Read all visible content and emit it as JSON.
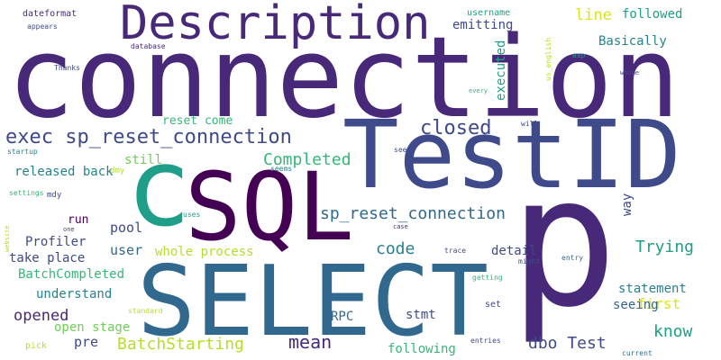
{
  "words": {
    "connection": "connection",
    "testid": "TestID",
    "select": "SELECT",
    "sql": "SQL",
    "c": "c",
    "p": "p",
    "description": "Description",
    "exec_reset": "exec sp_reset_connection",
    "sp_reset": "sp_reset_connection",
    "closed": "closed",
    "completed": "Completed",
    "batchstarting": "BatchStarting",
    "batchcompleted": "BatchCompleted",
    "mean": "mean",
    "dbo_test": "dbo Test",
    "code": "code",
    "trying": "Trying",
    "know": "know",
    "first": "first",
    "seeing": "seeing",
    "statement": "statement",
    "detail": "detail",
    "rpc": "RPC",
    "stmt": "stmt",
    "following": "following",
    "pre": "pre",
    "open_stage": "open stage",
    "opened": "opened",
    "understand": "understand",
    "take_place": "take place",
    "profiler": "Profiler",
    "run": "run",
    "pool": "pool",
    "user": "user",
    "whole_process": "whole process",
    "released_back": "released back",
    "still": "still",
    "reset_come": "reset come",
    "emitting": "emitting",
    "line": "line",
    "followed": "followed",
    "basically": "Basically",
    "executed": "executed",
    "way": "way",
    "username": "username",
    "dateformat": "dateformat",
    "appears": "appears",
    "thanks": "Thanks",
    "database": "database",
    "us_english": "us_english",
    "asp": "asp",
    "whome": "whome",
    "every": "every",
    "will": "will",
    "see": "see",
    "seems": "seems",
    "startup": "startup",
    "dmy": "dmy",
    "settings": "settings",
    "mdy": "mdy",
    "uses": "uses",
    "website": "website",
    "one": "one",
    "case": "case",
    "trace": "trace",
    "might": "might",
    "entry": "entry",
    "getting": "getting",
    "set": "set",
    "standard": "standard",
    "entries": "entries",
    "current": "current",
    "pick": "pick"
  }
}
